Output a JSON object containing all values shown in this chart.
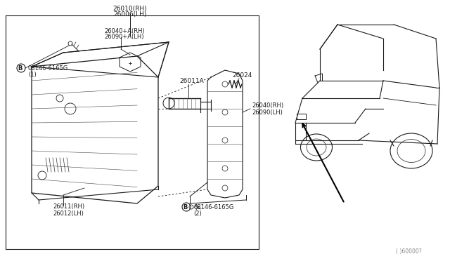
{
  "bg_color": "#ffffff",
  "line_color": "#1a1a1a",
  "gray_color": "#888888",
  "title1": "26010(RH)",
  "title2": "26006(LH)",
  "label_26040A": "26040+A(RH)",
  "label_26090A": "26090+A(LH)",
  "label_26024": "26024",
  "label_26011A": "26011A",
  "label_26040": "26040(RH)",
  "label_26090": "26090(LH)",
  "label_B1": "08146-6165G",
  "label_B1b": "(1)",
  "label_26011": "26011(RH)",
  "label_26012": "26012(LH)",
  "label_B2": "08146-6165G",
  "label_B2b": "(2)",
  "diagram_id": "( )60000?"
}
